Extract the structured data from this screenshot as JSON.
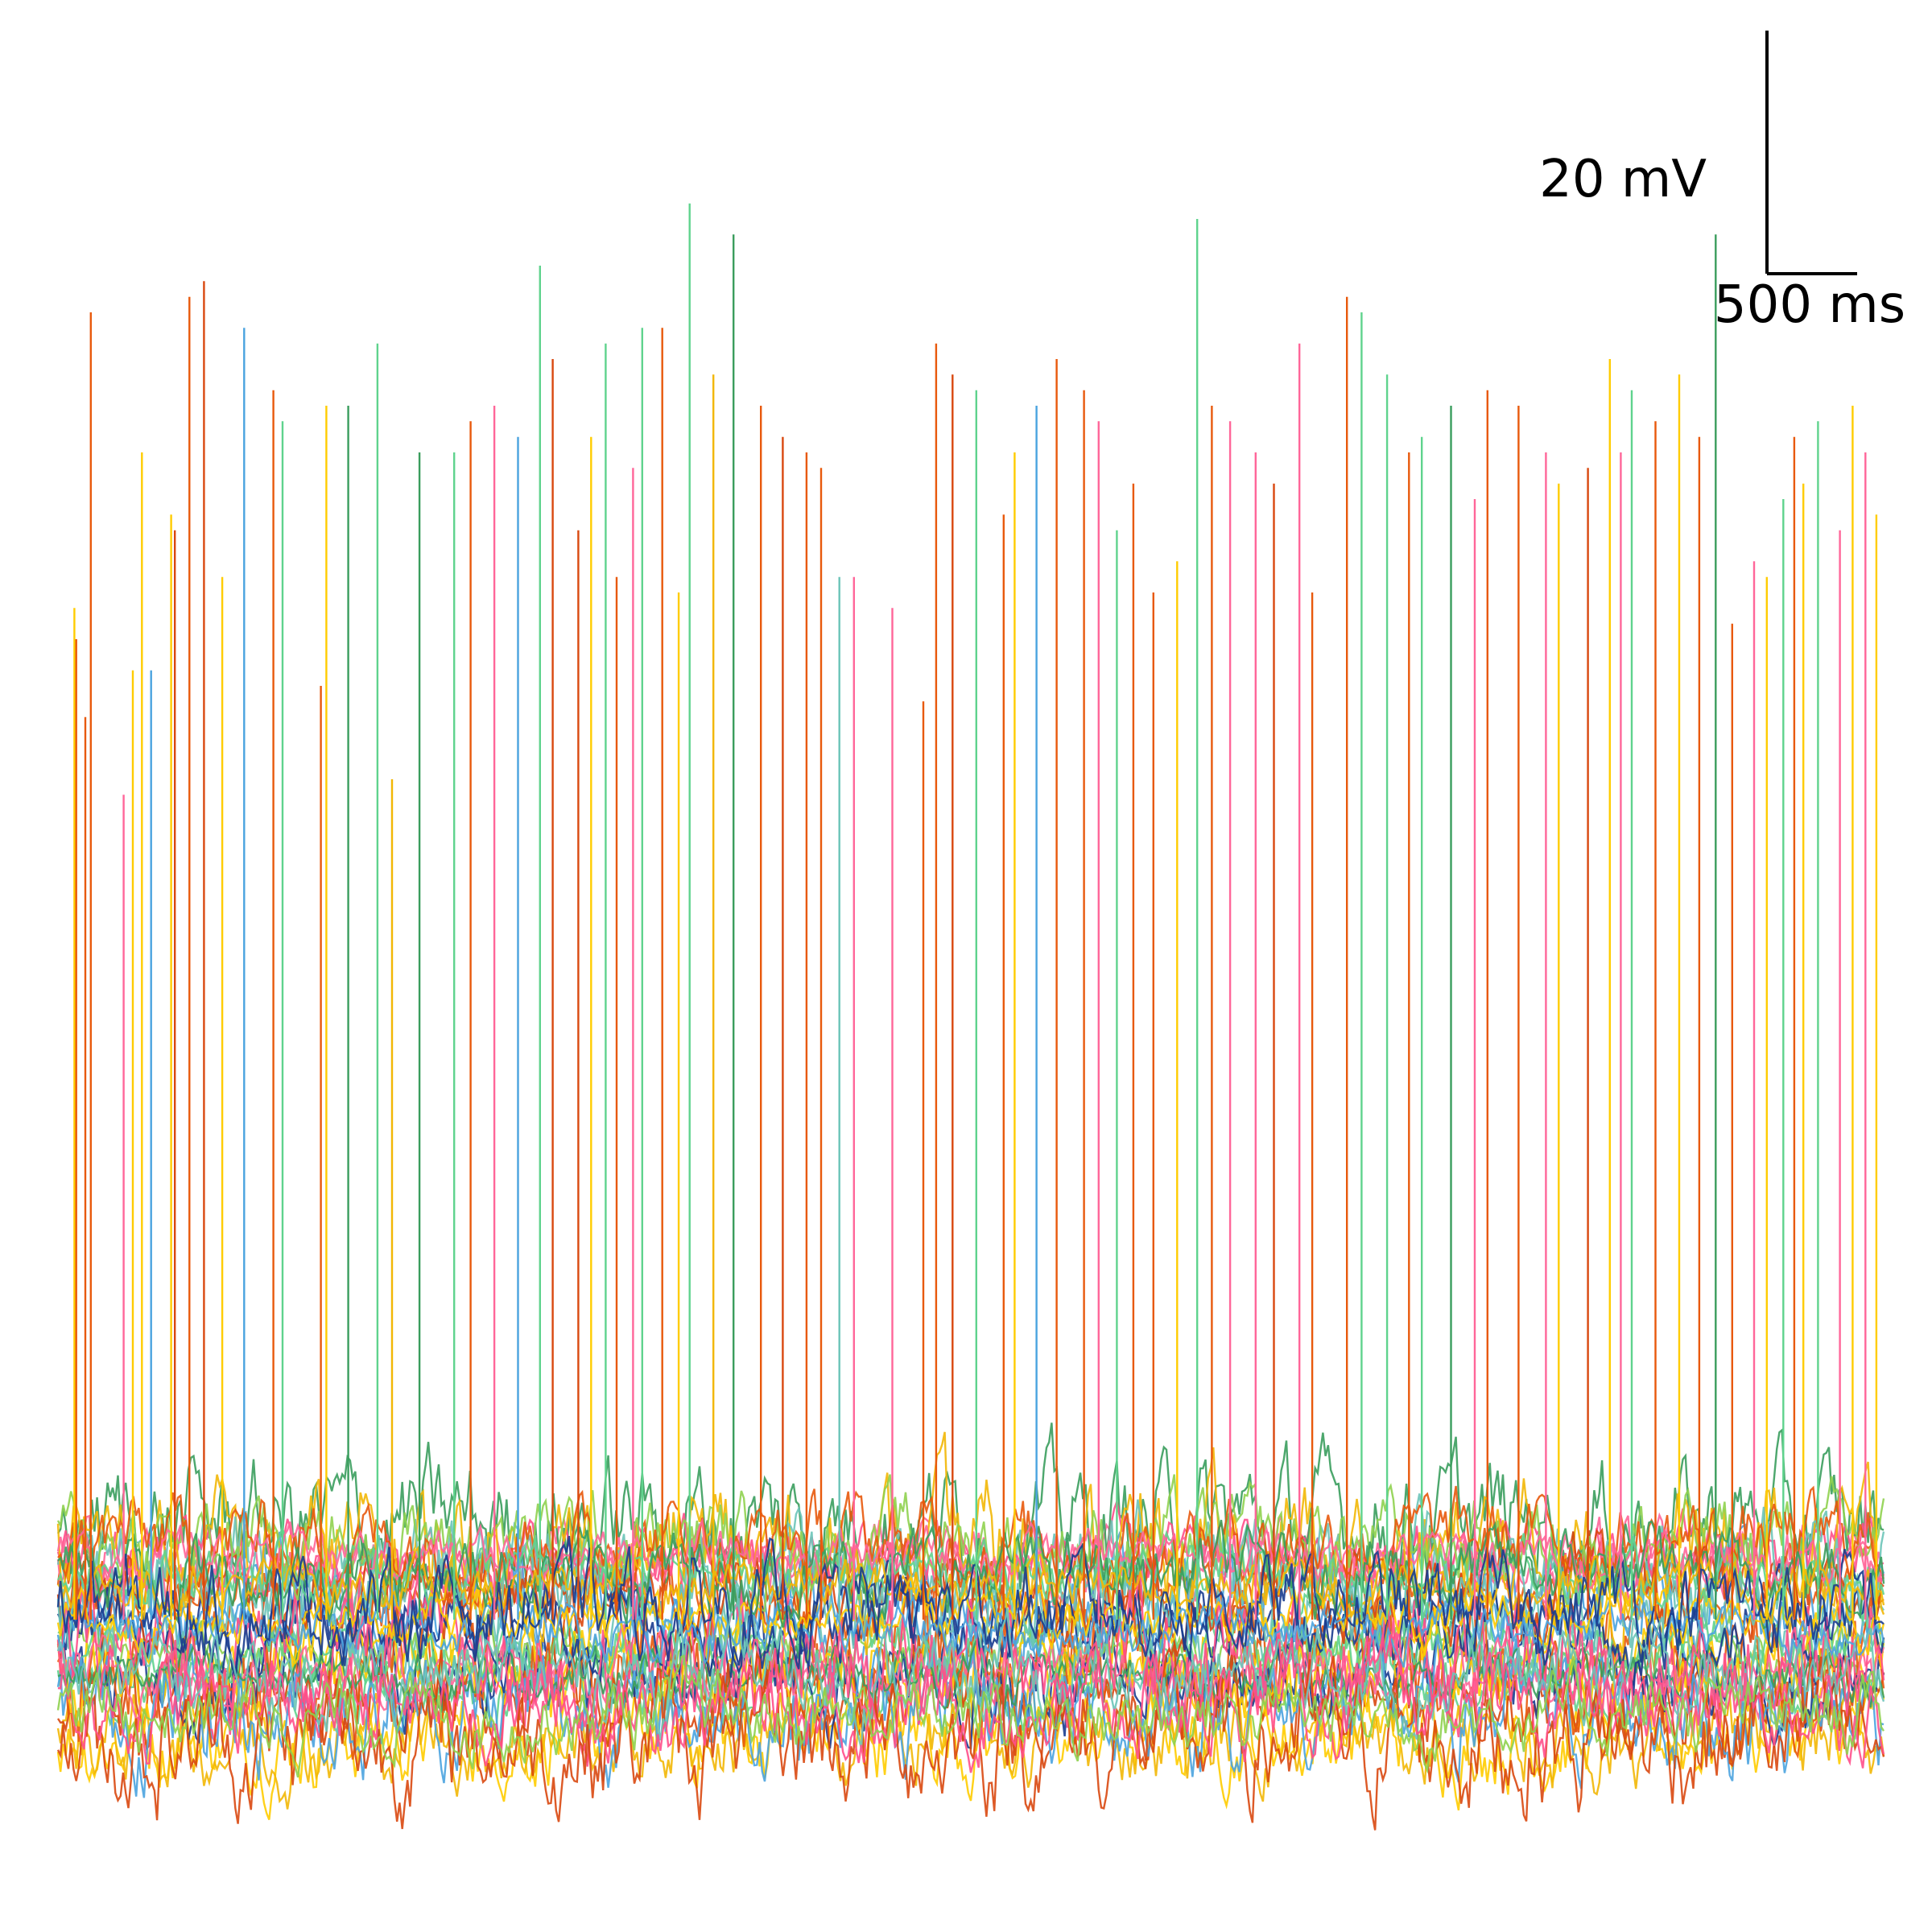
{
  "chart_data": {
    "type": "line",
    "title": "",
    "xlabel": "",
    "ylabel": "",
    "description_units": {
      "x": "ms",
      "y": "mV"
    },
    "x_range_ms": [
      0,
      10000
    ],
    "y_range_mV": [
      -80,
      40
    ],
    "axes_visible": false,
    "grid": false,
    "legend": "none",
    "scale_bar": {
      "voltage_label": "20 mV",
      "time_label": "500 ms",
      "voltage_mV": 20,
      "time_ms": 500
    },
    "trace_colors": [
      "#e8590c",
      "#ffcc00",
      "#5fd38d",
      "#ff6699",
      "#4aa3df",
      "#3a9d5d",
      "#f2b705",
      "#d9480f",
      "#1a3c8f",
      "#6bc4b8",
      "#ff4f8b",
      "#8fd14f"
    ],
    "baseline_mV": -62,
    "trace_band_mV": [
      -70,
      -55
    ],
    "spike_peaks": [
      {
        "t_ms": 90,
        "v": 3.0,
        "c": 1
      },
      {
        "t_ms": 100,
        "v": 1.0,
        "c": 0
      },
      {
        "t_ms": 150,
        "v": -4.0,
        "c": 0
      },
      {
        "t_ms": 180,
        "v": 22.0,
        "c": 0
      },
      {
        "t_ms": 360,
        "v": -9.0,
        "c": 3
      },
      {
        "t_ms": 410,
        "v": -1.0,
        "c": 1
      },
      {
        "t_ms": 460,
        "v": 13.0,
        "c": 1
      },
      {
        "t_ms": 510,
        "v": -1.0,
        "c": 4
      },
      {
        "t_ms": 620,
        "v": 9.0,
        "c": 1
      },
      {
        "t_ms": 640,
        "v": 8.0,
        "c": 7
      },
      {
        "t_ms": 720,
        "v": 23.0,
        "c": 0
      },
      {
        "t_ms": 800,
        "v": 24.0,
        "c": 7
      },
      {
        "t_ms": 900,
        "v": 5.0,
        "c": 1
      },
      {
        "t_ms": 1020,
        "v": 21.0,
        "c": 4
      },
      {
        "t_ms": 1180,
        "v": 17.0,
        "c": 0
      },
      {
        "t_ms": 1230,
        "v": 15.0,
        "c": 2
      },
      {
        "t_ms": 1440,
        "v": -2.0,
        "c": 0
      },
      {
        "t_ms": 1470,
        "v": 16.0,
        "c": 1
      },
      {
        "t_ms": 1590,
        "v": 16.0,
        "c": 5
      },
      {
        "t_ms": 1750,
        "v": 20.0,
        "c": 2
      },
      {
        "t_ms": 1830,
        "v": -8.0,
        "c": 6
      },
      {
        "t_ms": 1980,
        "v": 13.0,
        "c": 5
      },
      {
        "t_ms": 2170,
        "v": 13.0,
        "c": 2
      },
      {
        "t_ms": 2260,
        "v": 15.0,
        "c": 0
      },
      {
        "t_ms": 2390,
        "v": 16.0,
        "c": 3
      },
      {
        "t_ms": 2520,
        "v": 14.0,
        "c": 4
      },
      {
        "t_ms": 2640,
        "v": 25.0,
        "c": 2
      },
      {
        "t_ms": 2710,
        "v": 19.0,
        "c": 7
      },
      {
        "t_ms": 2850,
        "v": 8.0,
        "c": 7
      },
      {
        "t_ms": 2920,
        "v": 14.0,
        "c": 1
      },
      {
        "t_ms": 3000,
        "v": 20.0,
        "c": 2
      },
      {
        "t_ms": 3060,
        "v": 5.0,
        "c": 0
      },
      {
        "t_ms": 3150,
        "v": 12.0,
        "c": 3
      },
      {
        "t_ms": 3200,
        "v": 21.0,
        "c": 2
      },
      {
        "t_ms": 3310,
        "v": 21.0,
        "c": 0
      },
      {
        "t_ms": 3400,
        "v": 4.0,
        "c": 1
      },
      {
        "t_ms": 3460,
        "v": 29.0,
        "c": 2
      },
      {
        "t_ms": 3590,
        "v": 18.0,
        "c": 6
      },
      {
        "t_ms": 3700,
        "v": 27.0,
        "c": 5
      },
      {
        "t_ms": 3850,
        "v": 16.0,
        "c": 0
      },
      {
        "t_ms": 3970,
        "v": 14.0,
        "c": 7
      },
      {
        "t_ms": 4100,
        "v": 13.0,
        "c": 0
      },
      {
        "t_ms": 4180,
        "v": 12.0,
        "c": 0
      },
      {
        "t_ms": 4280,
        "v": 5.0,
        "c": 9
      },
      {
        "t_ms": 4360,
        "v": 5.0,
        "c": 3
      },
      {
        "t_ms": 4570,
        "v": 3.0,
        "c": 3
      },
      {
        "t_ms": 4740,
        "v": -3.0,
        "c": 0
      },
      {
        "t_ms": 4810,
        "v": 20.0,
        "c": 0
      },
      {
        "t_ms": 4900,
        "v": 18.0,
        "c": 7
      },
      {
        "t_ms": 5030,
        "v": 17.0,
        "c": 2
      },
      {
        "t_ms": 5180,
        "v": 9.0,
        "c": 0
      },
      {
        "t_ms": 5240,
        "v": 13.0,
        "c": 1
      },
      {
        "t_ms": 5360,
        "v": 16.0,
        "c": 4
      },
      {
        "t_ms": 5470,
        "v": 19.0,
        "c": 0
      },
      {
        "t_ms": 5620,
        "v": 17.0,
        "c": 0
      },
      {
        "t_ms": 5700,
        "v": 15.0,
        "c": 3
      },
      {
        "t_ms": 5800,
        "v": 8.0,
        "c": 2
      },
      {
        "t_ms": 5890,
        "v": 11.0,
        "c": 0
      },
      {
        "t_ms": 6000,
        "v": 4.0,
        "c": 0
      },
      {
        "t_ms": 6130,
        "v": 6.0,
        "c": 1
      },
      {
        "t_ms": 6240,
        "v": 28.0,
        "c": 2
      },
      {
        "t_ms": 6320,
        "v": 16.0,
        "c": 0
      },
      {
        "t_ms": 6420,
        "v": 15.0,
        "c": 3
      },
      {
        "t_ms": 6560,
        "v": 13.0,
        "c": 3
      },
      {
        "t_ms": 6660,
        "v": 11.0,
        "c": 7
      },
      {
        "t_ms": 6800,
        "v": 20.0,
        "c": 3
      },
      {
        "t_ms": 6870,
        "v": 4.0,
        "c": 0
      },
      {
        "t_ms": 7060,
        "v": 23.0,
        "c": 0
      },
      {
        "t_ms": 7140,
        "v": 22.0,
        "c": 2
      },
      {
        "t_ms": 7280,
        "v": 18.0,
        "c": 2
      },
      {
        "t_ms": 7400,
        "v": 13.0,
        "c": 0
      },
      {
        "t_ms": 7470,
        "v": 14.0,
        "c": 2
      },
      {
        "t_ms": 7630,
        "v": 16.0,
        "c": 5
      },
      {
        "t_ms": 7760,
        "v": 10.0,
        "c": 3
      },
      {
        "t_ms": 7830,
        "v": 17.0,
        "c": 0
      },
      {
        "t_ms": 8000,
        "v": 16.0,
        "c": 0
      },
      {
        "t_ms": 8150,
        "v": 13.0,
        "c": 3
      },
      {
        "t_ms": 8220,
        "v": 11.0,
        "c": 1
      },
      {
        "t_ms": 8380,
        "v": 12.0,
        "c": 7
      },
      {
        "t_ms": 8500,
        "v": 19.0,
        "c": 1
      },
      {
        "t_ms": 8560,
        "v": 13.0,
        "c": 3
      },
      {
        "t_ms": 8620,
        "v": 17.0,
        "c": 2
      },
      {
        "t_ms": 8750,
        "v": 15.0,
        "c": 0
      },
      {
        "t_ms": 8880,
        "v": 18.0,
        "c": 1
      },
      {
        "t_ms": 8990,
        "v": 14.0,
        "c": 0
      },
      {
        "t_ms": 9080,
        "v": 27.0,
        "c": 5
      },
      {
        "t_ms": 9170,
        "v": 2.0,
        "c": 0
      },
      {
        "t_ms": 9290,
        "v": 6.0,
        "c": 3
      },
      {
        "t_ms": 9360,
        "v": 5.0,
        "c": 1
      },
      {
        "t_ms": 9450,
        "v": 10.0,
        "c": 2
      },
      {
        "t_ms": 9510,
        "v": 14.0,
        "c": 0
      },
      {
        "t_ms": 9560,
        "v": 11.0,
        "c": 1
      },
      {
        "t_ms": 9640,
        "v": 15.0,
        "c": 2
      },
      {
        "t_ms": 9760,
        "v": 8.0,
        "c": 3
      },
      {
        "t_ms": 9830,
        "v": 16.0,
        "c": 1
      },
      {
        "t_ms": 9900,
        "v": 13.0,
        "c": 3
      },
      {
        "t_ms": 9960,
        "v": 9.0,
        "c": 1
      }
    ]
  }
}
